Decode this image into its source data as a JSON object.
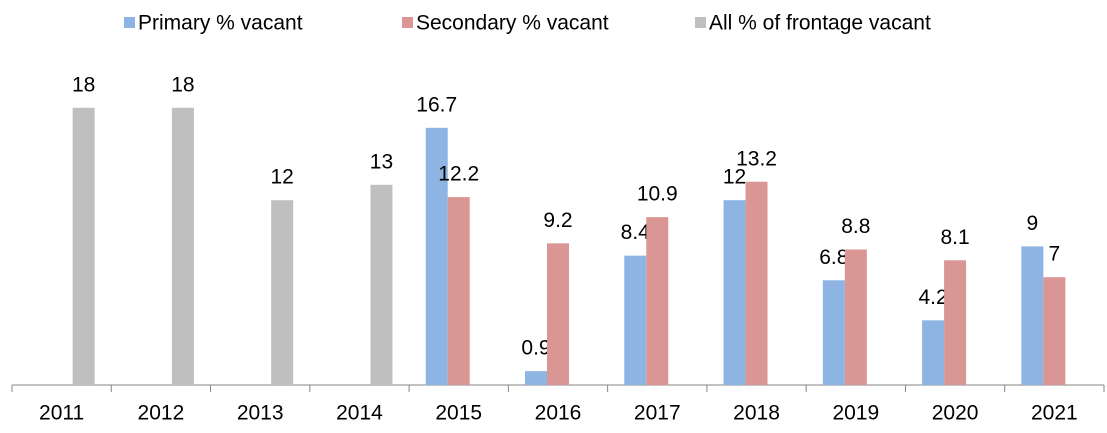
{
  "chart_data": {
    "type": "bar",
    "categories": [
      "2011",
      "2012",
      "2013",
      "2014",
      "2015",
      "2016",
      "2017",
      "2018",
      "2019",
      "2020",
      "2021"
    ],
    "series": [
      {
        "name": "Primary % vacant",
        "color": "#8db4e2",
        "values": [
          null,
          null,
          null,
          null,
          16.7,
          0.9,
          8.4,
          12,
          6.8,
          4.2,
          9
        ]
      },
      {
        "name": "Secondary % vacant",
        "color": "#da9694",
        "values": [
          null,
          null,
          null,
          null,
          12.2,
          9.2,
          10.9,
          13.2,
          8.8,
          8.1,
          7
        ]
      },
      {
        "name": "All % of frontage vacant",
        "color": "#bfbfbf",
        "values": [
          18,
          18,
          12,
          13,
          null,
          null,
          null,
          null,
          null,
          null,
          null
        ]
      }
    ],
    "ylim": [
      0,
      20
    ],
    "legend": "top"
  }
}
